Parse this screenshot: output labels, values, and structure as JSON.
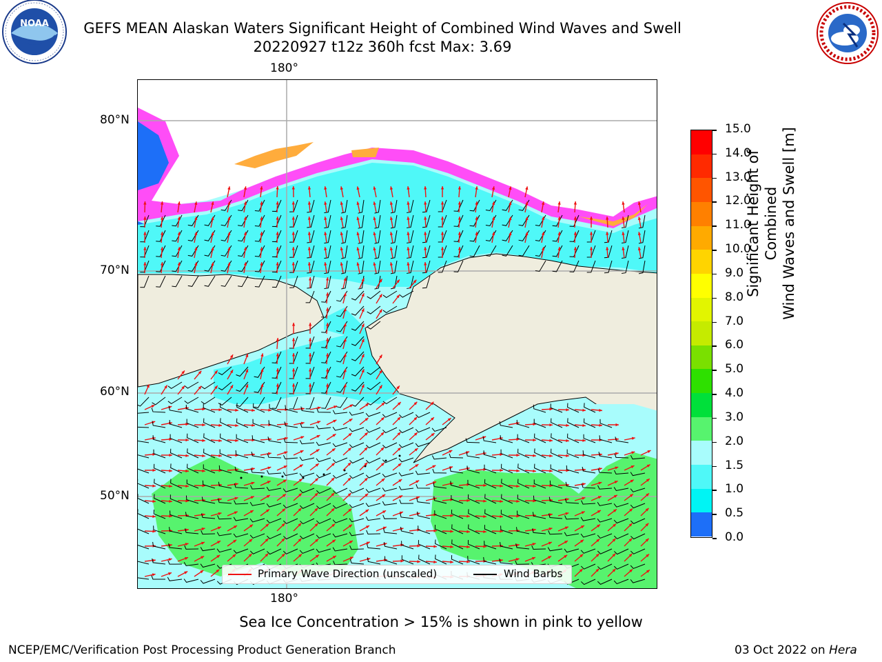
{
  "title": {
    "line1": "GEFS MEAN Alaskan Waters Significant Height of Combined Wind Waves and Swell",
    "line2": "20220927 t12z 360h fcst   Max: 3.69"
  },
  "logos": {
    "left": {
      "name": "NOAA",
      "ring_text": "NATIONAL OCEANIC AND ATMOSPHERIC ADMINISTRATION",
      "bottom_text": "U.S. DEPARTMENT OF COMMERCE"
    },
    "right": {
      "name": "NATIONAL WEATHER SERVICE"
    }
  },
  "map": {
    "lon_labels": [
      "180°",
      "180°"
    ],
    "lat_labels": [
      "80°N",
      "70°N",
      "60°N",
      "50°N"
    ],
    "colors": {
      "land": "#efedde",
      "ocean_low": "#a8fcfc",
      "ocean_mid": "#4ff8f8",
      "ocean_high": "#57f36e",
      "ice_pink": "#ff4df7",
      "ice_orange": "#ffac3c",
      "deep_blue": "#1d6ff8",
      "arrow": "#ee1111",
      "barb": "#000000",
      "grid": "#aaaaaa"
    }
  },
  "legend": {
    "wave_direction": "Primary Wave Direction (unscaled)",
    "wind_barbs": "Wind Barbs"
  },
  "colorbar": {
    "title_line1": "Significant Height of Combined",
    "title_line2": "Wind Waves and Swell [m]",
    "tick_labels": [
      "15.0",
      "14.0",
      "13.0",
      "12.0",
      "11.0",
      "10.0",
      "9.0",
      "8.0",
      "7.0",
      "6.0",
      "5.0",
      "4.0",
      "3.0",
      "2.0",
      "1.5",
      "1.0",
      "0.5",
      "0.0"
    ],
    "segment_colors": [
      "#ff0000",
      "#ff2a00",
      "#ff5500",
      "#ff8000",
      "#ffaa00",
      "#ffd400",
      "#ffff00",
      "#e2f500",
      "#c5eb00",
      "#7ae000",
      "#2ee000",
      "#00e03a",
      "#57f36e",
      "#a8fcfc",
      "#4ff8f8",
      "#00f4f4",
      "#1d6ff8",
      "#0000f8"
    ]
  },
  "subcaption": "Sea Ice Concentration > 15% is shown in pink to yellow",
  "footer": {
    "left": "NCEP/EMC/Verification Post Processing Product Generation Branch",
    "right_prefix": "03 Oct 2022 on ",
    "right_host": "Hera"
  }
}
